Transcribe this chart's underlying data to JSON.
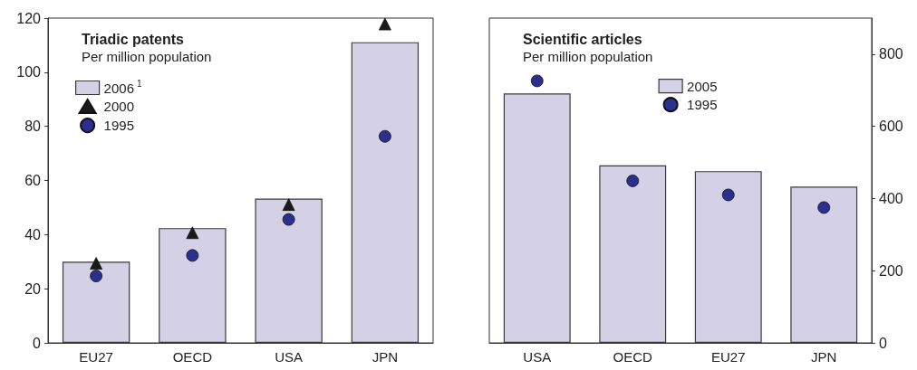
{
  "chart_data": [
    {
      "type": "bar",
      "title": "Triadic patents",
      "subtitle": "Per million population",
      "categories": [
        "EU27",
        "OECD",
        "USA",
        "JPN"
      ],
      "series": [
        {
          "name": "2006$^{1}$",
          "color": "#d4d1e7",
          "values": [
            30,
            42.4,
            53.3,
            111.1
          ]
        },
        {
          "name": "2000",
          "type": "scatter",
          "marker": "triangle",
          "color": "#1a1a1a",
          "values": [
            29.4,
            40.7,
            51.1,
            117.8
          ]
        },
        {
          "name": "1995",
          "type": "scatter",
          "marker": "circle",
          "color": "#2b2f8e",
          "values": [
            24.7,
            32.3,
            45.6,
            76.3
          ]
        }
      ],
      "ylim": [
        0,
        120
      ],
      "yticks": [
        0,
        20,
        40,
        60,
        80,
        100,
        120
      ],
      "legend": "top left",
      "grid": false
    },
    {
      "type": "bar",
      "title": "Scientific articles",
      "subtitle": "Per million population",
      "categories": [
        "USA",
        "OECD",
        "EU27",
        "JPN"
      ],
      "series": [
        {
          "name": "2005",
          "axis": "y2",
          "color": "#d4d1e7",
          "values": [
            691,
            492,
            476,
            433
          ]
        },
        {
          "name": "1995",
          "type": "scatter",
          "axis": "y2",
          "marker": "circle",
          "color": "#2b2f8e",
          "values": [
            726,
            449,
            410,
            375
          ]
        }
      ],
      "y2lim": [
        0,
        900
      ],
      "y2ticks": [
        0,
        200,
        400,
        600,
        800
      ],
      "legend": "top",
      "grid": false
    }
  ]
}
